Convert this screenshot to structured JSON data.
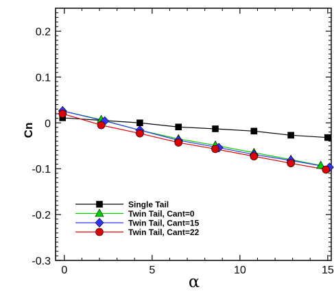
{
  "chart_data": {
    "type": "line",
    "title": "",
    "xlabel": "α",
    "ylabel": "Cn",
    "xlim": [
      -0.5,
      15.2
    ],
    "ylim": [
      -0.3,
      0.25
    ],
    "xticks": [
      0,
      5,
      10,
      15
    ],
    "yticks": [
      -0.3,
      -0.2,
      -0.1,
      0,
      0.1,
      0.2
    ],
    "xtick_labels": [
      "0",
      "5",
      "10",
      "15"
    ],
    "ytick_labels": [
      "-0.3",
      "-0.2",
      "-0.1",
      "0",
      "0.1",
      "0.2"
    ],
    "grid": false,
    "legend_position": "bottom-left",
    "series": [
      {
        "name": "Single Tail",
        "color": "#000000",
        "marker": "square",
        "x": [
          -0.1,
          4.3,
          6.5,
          8.6,
          10.8,
          12.9,
          15.0
        ],
        "y": [
          0.011,
          0.0,
          -0.009,
          -0.013,
          -0.018,
          -0.027,
          -0.032
        ]
      },
      {
        "name": "Twin Tail, Cant=0",
        "color": "#00cc00",
        "marker": "triangle",
        "x": [
          -0.1,
          2.1,
          4.3,
          6.5,
          8.6,
          10.8,
          12.9,
          14.6
        ],
        "y": [
          0.026,
          0.007,
          -0.016,
          -0.035,
          -0.049,
          -0.065,
          -0.08,
          -0.093
        ]
      },
      {
        "name": "Twin Tail, Cant=15",
        "color": "#3333ff",
        "marker": "diamond",
        "x": [
          -0.1,
          2.3,
          4.3,
          6.5,
          8.8,
          10.8,
          12.9,
          15.1
        ],
        "y": [
          0.026,
          0.004,
          -0.016,
          -0.038,
          -0.054,
          -0.069,
          -0.082,
          -0.097
        ]
      },
      {
        "name": "Twin Tail, Cant=22",
        "color": "#dd0000",
        "marker": "circle",
        "x": [
          -0.1,
          2.1,
          4.3,
          6.5,
          8.6,
          10.8,
          12.9,
          14.9
        ],
        "y": [
          0.02,
          -0.005,
          -0.023,
          -0.043,
          -0.057,
          -0.073,
          -0.088,
          -0.102
        ]
      }
    ]
  }
}
